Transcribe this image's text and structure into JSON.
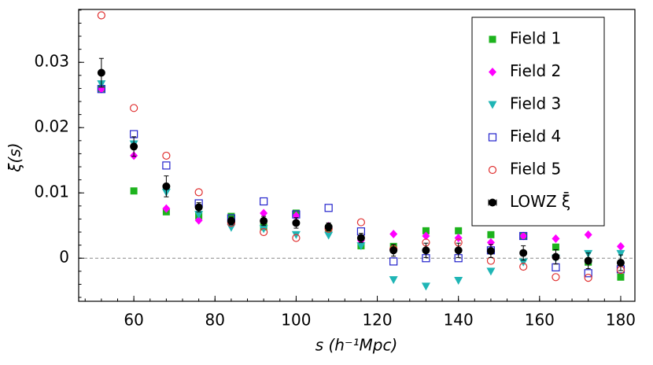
{
  "chart_data": {
    "type": "scatter",
    "xlabel": "s (h⁻¹Mpc)",
    "ylabel": "ξ(s)",
    "x": [
      52,
      60,
      68,
      76,
      84,
      92,
      100,
      108,
      116,
      124,
      132,
      140,
      148,
      156,
      164,
      172,
      180
    ],
    "xlim": [
      46.4,
      183.5
    ],
    "xticks": [
      60,
      80,
      100,
      120,
      140,
      160,
      180
    ],
    "ylim": [
      -0.0066,
      0.0381
    ],
    "yticks": [
      0,
      0.01,
      0.02,
      0.03
    ],
    "reference_line": 0,
    "legend": "upper right",
    "series": [
      {
        "name": "Field 1",
        "color": "#1db31d",
        "marker": "square",
        "values": [
          0.026,
          0.0103,
          0.0071,
          0.0065,
          0.0064,
          0.0048,
          0.0069,
          0.0046,
          0.0019,
          0.0018,
          0.0042,
          0.0042,
          0.0036,
          0.0034,
          0.0017,
          -0.0006,
          -0.0029
        ]
      },
      {
        "name": "Field 2",
        "color": "#ff00ff",
        "marker": "diamond",
        "values": [
          0.0259,
          0.0157,
          0.0076,
          0.0058,
          0.0054,
          0.0069,
          0.0065,
          0.0049,
          0.0027,
          0.0037,
          0.0034,
          0.0031,
          0.0024,
          0.0034,
          0.003,
          0.0036,
          0.0018
        ]
      },
      {
        "name": "Field 3",
        "color": "#1fb5b5",
        "marker": "triangle-down",
        "values": [
          0.0267,
          0.0175,
          0.0101,
          0.0067,
          0.0047,
          0.0045,
          0.0036,
          0.0035,
          0.0019,
          -0.0033,
          -0.0043,
          -0.0034,
          -0.002,
          -0.0006,
          0,
          0.0007,
          0.0007
        ]
      },
      {
        "name": "Field 4",
        "color": "#2222cc",
        "marker": "open-square",
        "values": [
          0.0259,
          0.019,
          0.0142,
          0.0084,
          0.0061,
          0.0087,
          0.0067,
          0.0077,
          0.0041,
          -0.0005,
          0,
          0,
          0.0012,
          0.0034,
          -0.0014,
          -0.0023,
          -0.0017
        ]
      },
      {
        "name": "Field 5",
        "color": "#e03030",
        "marker": "open-circle",
        "values": [
          0.0372,
          0.023,
          0.0157,
          0.0101,
          0.0054,
          0.004,
          0.0031,
          0.0045,
          0.0055,
          0.0014,
          0.0024,
          0.0024,
          -0.0004,
          -0.0013,
          -0.0029,
          -0.003,
          -0.0018
        ]
      },
      {
        "name": "LOWZ ξ̄",
        "color": "#000000",
        "marker": "circle",
        "values": [
          0.0284,
          0.0171,
          0.011,
          0.0078,
          0.0057,
          0.0057,
          0.0054,
          0.0048,
          0.0031,
          0.0012,
          0.0012,
          0.0012,
          0.0011,
          0.0008,
          0.0002,
          -0.0004,
          -0.0007
        ],
        "errors": [
          0.0022,
          0.0015,
          0.0016,
          0.0007,
          0.0006,
          0.0007,
          0.0008,
          0.0006,
          0.0007,
          0.0009,
          0.0011,
          0.0011,
          0.001,
          0.0011,
          0.0011,
          0.0012,
          0.0012
        ]
      }
    ]
  }
}
